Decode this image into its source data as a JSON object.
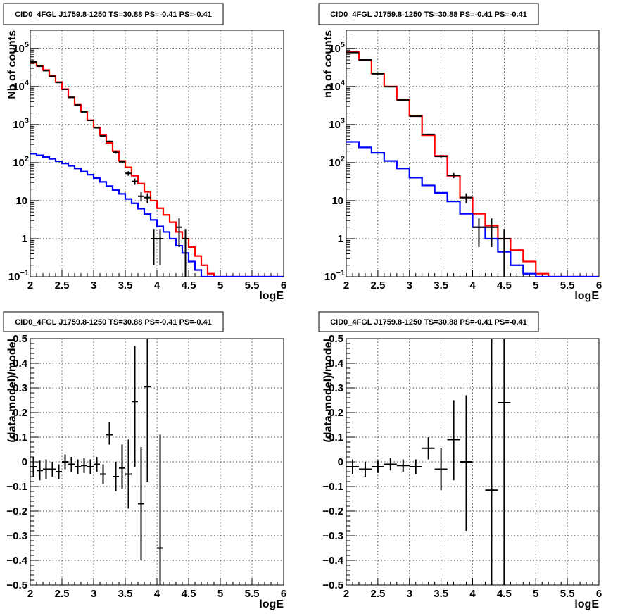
{
  "chart_data": [
    {
      "type": "step-histogram",
      "title": "CID0_4FGL J1759.8-1250 TS=30.88 PS=-0.41 PS=-0.41",
      "xlabel": "logE",
      "ylabel": "Nb of counts",
      "xlim": [
        2,
        6
      ],
      "ylim": [
        0.1,
        300000
      ],
      "yscale": "log",
      "grid": true,
      "xticks": [
        "2",
        "2.5",
        "3",
        "3.5",
        "4",
        "4.5",
        "5",
        "5.5",
        "6"
      ],
      "yticks": [
        {
          "value": 0.1,
          "base": "10",
          "exp": "−1"
        },
        {
          "value": 1,
          "base": "1",
          "exp": ""
        },
        {
          "value": 10,
          "base": "10",
          "exp": ""
        },
        {
          "value": 100,
          "base": "10",
          "exp": "2"
        },
        {
          "value": 1000,
          "base": "10",
          "exp": "3"
        },
        {
          "value": 10000,
          "base": "10",
          "exp": "4"
        },
        {
          "value": 100000,
          "base": "10",
          "exp": "5"
        }
      ],
      "bin_edges": [
        2.0,
        2.1,
        2.2,
        2.3,
        2.4,
        2.5,
        2.6,
        2.7,
        2.8,
        2.9,
        3.0,
        3.1,
        3.2,
        3.3,
        3.4,
        3.5,
        3.6,
        3.7,
        3.8,
        3.9,
        4.0,
        4.1,
        4.2,
        4.3,
        4.4,
        4.5,
        4.6,
        4.7,
        4.8,
        4.9,
        5.0,
        5.1,
        5.2,
        5.3,
        5.4,
        5.5,
        5.6,
        5.7,
        5.8,
        5.9,
        6.0
      ],
      "series": [
        {
          "color": "#ff0000",
          "values": [
            42000,
            35000,
            27000,
            19000,
            13000,
            8500,
            5200,
            3300,
            2200,
            1300,
            840,
            520,
            330,
            200,
            110,
            75,
            45,
            28,
            17,
            10,
            6.3,
            4.2,
            2.7,
            1.5,
            1.0,
            0.6,
            0.35,
            0.2,
            0.12,
            0.1,
            0.1,
            0.1,
            0.1,
            0.1,
            0.1,
            0.1,
            0.1,
            0.1,
            0.1,
            0.1
          ]
        },
        {
          "color": "#0000ff",
          "values": [
            170,
            155,
            140,
            125,
            108,
            95,
            82,
            70,
            58,
            48,
            39,
            31,
            24,
            19,
            15,
            11,
            8.5,
            6.1,
            4.4,
            3.1,
            2.1,
            1.5,
            1.0,
            0.65,
            0.42,
            0.25,
            0.15,
            0.1,
            0.1,
            0.1,
            0.1,
            0.1,
            0.1,
            0.1,
            0.1,
            0.1,
            0.1,
            0.1,
            0.1,
            0.1
          ]
        }
      ],
      "points": [
        {
          "x": 2.05,
          "y": 44000,
          "ylo": 43500,
          "yhi": 44500
        },
        {
          "x": 2.15,
          "y": 34000,
          "ylo": 33600,
          "yhi": 34400
        },
        {
          "x": 2.25,
          "y": 26000,
          "ylo": 25600,
          "yhi": 26400
        },
        {
          "x": 2.35,
          "y": 18500,
          "ylo": 18200,
          "yhi": 18800
        },
        {
          "x": 2.45,
          "y": 12700,
          "ylo": 12500,
          "yhi": 12900
        },
        {
          "x": 2.55,
          "y": 8400,
          "ylo": 8300,
          "yhi": 8500
        },
        {
          "x": 2.65,
          "y": 5150,
          "ylo": 5080,
          "yhi": 5220
        },
        {
          "x": 2.75,
          "y": 3250,
          "ylo": 3190,
          "yhi": 3310
        },
        {
          "x": 2.85,
          "y": 2150,
          "ylo": 2100,
          "yhi": 2200
        },
        {
          "x": 2.95,
          "y": 1280,
          "ylo": 1240,
          "yhi": 1320
        },
        {
          "x": 3.05,
          "y": 820,
          "ylo": 790,
          "yhi": 850
        },
        {
          "x": 3.15,
          "y": 500,
          "ylo": 478,
          "yhi": 522
        },
        {
          "x": 3.25,
          "y": 360,
          "ylo": 341,
          "yhi": 379
        },
        {
          "x": 3.35,
          "y": 185,
          "ylo": 171,
          "yhi": 199
        },
        {
          "x": 3.45,
          "y": 105,
          "ylo": 95,
          "yhi": 115
        },
        {
          "x": 3.55,
          "y": 52,
          "ylo": 45,
          "yhi": 59
        },
        {
          "x": 3.65,
          "y": 32,
          "ylo": 26,
          "yhi": 38
        },
        {
          "x": 3.75,
          "y": 13,
          "ylo": 9.5,
          "yhi": 16.5
        },
        {
          "x": 3.85,
          "y": 12,
          "ylo": 8.5,
          "yhi": 15.5
        },
        {
          "x": 3.95,
          "y": 1,
          "ylo": 0.2,
          "yhi": 1.8
        },
        {
          "x": 4.05,
          "y": 1,
          "ylo": 0.2,
          "yhi": 1.8
        },
        {
          "x": 4.35,
          "y": 2,
          "ylo": 0.6,
          "yhi": 3.4
        },
        {
          "x": 4.45,
          "y": 1,
          "ylo": 0.1,
          "yhi": 1.8
        }
      ]
    },
    {
      "type": "step-histogram",
      "title": "CID0_4FGL J1759.8-1250 TS=30.88 PS=-0.41 PS=-0.41",
      "xlabel": "logE",
      "ylabel": "nb of counts",
      "xlim": [
        2,
        6
      ],
      "ylim": [
        0.1,
        300000
      ],
      "yscale": "log",
      "grid": true,
      "xticks": [
        "2",
        "2.5",
        "3",
        "3.5",
        "4",
        "4.5",
        "5",
        "5.5",
        "6"
      ],
      "yticks": [
        {
          "value": 0.1,
          "base": "10",
          "exp": "−1"
        },
        {
          "value": 1,
          "base": "1",
          "exp": ""
        },
        {
          "value": 10,
          "base": "10",
          "exp": ""
        },
        {
          "value": 100,
          "base": "10",
          "exp": "2"
        },
        {
          "value": 1000,
          "base": "10",
          "exp": "3"
        },
        {
          "value": 10000,
          "base": "10",
          "exp": "4"
        },
        {
          "value": 100000,
          "base": "10",
          "exp": "5"
        }
      ],
      "bin_edges": [
        2.0,
        2.2,
        2.4,
        2.6,
        2.8,
        3.0,
        3.2,
        3.4,
        3.6,
        3.8,
        4.0,
        4.2,
        4.4,
        4.6,
        4.8,
        5.0,
        5.2,
        5.4,
        5.6,
        5.8,
        6.0
      ],
      "series": [
        {
          "color": "#ff0000",
          "values": [
            80000,
            50000,
            22000,
            10000,
            4500,
            1700,
            520,
            150,
            45,
            12,
            4.5,
            2.2,
            1.0,
            0.5,
            0.25,
            0.12,
            0.1,
            0.1,
            0.1,
            0.1
          ]
        },
        {
          "color": "#0000ff",
          "values": [
            350,
            250,
            180,
            110,
            70,
            40,
            25,
            16,
            9.5,
            4.5,
            2.0,
            1.0,
            0.45,
            0.2,
            0.12,
            0.1,
            0.1,
            0.1,
            0.1,
            0.1
          ]
        }
      ],
      "points": [
        {
          "x": 2.1,
          "y": 78000,
          "ylo": 77500,
          "yhi": 78500
        },
        {
          "x": 2.3,
          "y": 50000,
          "ylo": 49600,
          "yhi": 50400
        },
        {
          "x": 2.5,
          "y": 21500,
          "ylo": 21300,
          "yhi": 21700
        },
        {
          "x": 2.7,
          "y": 9800,
          "ylo": 9700,
          "yhi": 9900
        },
        {
          "x": 2.9,
          "y": 4400,
          "ylo": 4330,
          "yhi": 4470
        },
        {
          "x": 3.1,
          "y": 1650,
          "ylo": 1610,
          "yhi": 1690
        },
        {
          "x": 3.3,
          "y": 550,
          "ylo": 527,
          "yhi": 573
        },
        {
          "x": 3.5,
          "y": 145,
          "ylo": 133,
          "yhi": 157
        },
        {
          "x": 3.7,
          "y": 46,
          "ylo": 39,
          "yhi": 53
        },
        {
          "x": 3.9,
          "y": 12,
          "ylo": 8.5,
          "yhi": 15.5
        },
        {
          "x": 4.1,
          "y": 2,
          "ylo": 0.6,
          "yhi": 3.4
        },
        {
          "x": 4.3,
          "y": 2,
          "ylo": 0.6,
          "yhi": 3.4
        },
        {
          "x": 4.5,
          "y": 1,
          "ylo": 0.1,
          "yhi": 1.8
        }
      ]
    },
    {
      "type": "scatter",
      "title": "CID0_4FGL J1759.8-1250 TS=30.88 PS=-0.41 PS=-0.41",
      "xlabel": "logE",
      "ylabel": "(data-model)/model",
      "xlim": [
        2,
        6
      ],
      "ylim": [
        -0.5,
        0.5
      ],
      "yscale": "linear",
      "grid": true,
      "xticks": [
        "2",
        "2.5",
        "3",
        "3.5",
        "4",
        "4.5",
        "5",
        "5.5",
        "6"
      ],
      "yticks": [
        "−0.5",
        "−0.4",
        "−0.3",
        "−0.2",
        "−0.1",
        "0",
        "0.1",
        "0.2",
        "0.3",
        "0.4",
        "0.5"
      ],
      "xerr": 0.05,
      "points": [
        {
          "x": 2.05,
          "y": -0.02,
          "ylo": -0.06,
          "yhi": 0.02
        },
        {
          "x": 2.15,
          "y": -0.035,
          "ylo": -0.075,
          "yhi": 0.005
        },
        {
          "x": 2.25,
          "y": -0.03,
          "ylo": -0.07,
          "yhi": 0.01
        },
        {
          "x": 2.35,
          "y": -0.03,
          "ylo": -0.06,
          "yhi": 0.0
        },
        {
          "x": 2.45,
          "y": -0.04,
          "ylo": -0.07,
          "yhi": -0.01
        },
        {
          "x": 2.55,
          "y": 0.0,
          "ylo": -0.03,
          "yhi": 0.03
        },
        {
          "x": 2.65,
          "y": -0.01,
          "ylo": -0.04,
          "yhi": 0.02
        },
        {
          "x": 2.75,
          "y": -0.02,
          "ylo": -0.05,
          "yhi": 0.01
        },
        {
          "x": 2.85,
          "y": -0.015,
          "ylo": -0.045,
          "yhi": 0.015
        },
        {
          "x": 2.95,
          "y": -0.02,
          "ylo": -0.05,
          "yhi": 0.01
        },
        {
          "x": 3.05,
          "y": -0.01,
          "ylo": -0.04,
          "yhi": 0.02
        },
        {
          "x": 3.15,
          "y": -0.05,
          "ylo": -0.09,
          "yhi": -0.01
        },
        {
          "x": 3.25,
          "y": 0.11,
          "ylo": 0.07,
          "yhi": 0.16
        },
        {
          "x": 3.35,
          "y": -0.06,
          "ylo": -0.12,
          "yhi": 0.0
        },
        {
          "x": 3.45,
          "y": -0.025,
          "ylo": -0.11,
          "yhi": 0.07
        },
        {
          "x": 3.55,
          "y": -0.05,
          "ylo": -0.19,
          "yhi": 0.09
        },
        {
          "x": 3.65,
          "y": 0.245,
          "ylo": -0.02,
          "yhi": 0.47
        },
        {
          "x": 3.75,
          "y": -0.17,
          "ylo": -0.4,
          "yhi": 0.06
        },
        {
          "x": 3.85,
          "y": 0.305,
          "ylo": -0.08,
          "yhi": 0.5
        },
        {
          "x": 4.05,
          "y": -0.35,
          "ylo": -0.5,
          "yhi": 0.11
        }
      ]
    },
    {
      "type": "scatter",
      "title": "CID0_4FGL J1759.8-1250 TS=30.88 PS=-0.41 PS=-0.41",
      "xlabel": "logE",
      "ylabel": "(data-model)/model",
      "xlim": [
        2,
        6
      ],
      "ylim": [
        -0.5,
        0.5
      ],
      "yscale": "linear",
      "grid": true,
      "xticks": [
        "2",
        "2.5",
        "3",
        "3.5",
        "4",
        "4.5",
        "5",
        "5.5",
        "6"
      ],
      "yticks": [
        "−0.5",
        "−0.4",
        "−0.3",
        "−0.2",
        "−0.1",
        "0",
        "0.1",
        "0.2",
        "0.3",
        "0.4",
        "0.5"
      ],
      "xerr": 0.1,
      "points": [
        {
          "x": 2.1,
          "y": -0.02,
          "ylo": -0.05,
          "yhi": 0.01
        },
        {
          "x": 2.3,
          "y": -0.03,
          "ylo": -0.06,
          "yhi": 0.0
        },
        {
          "x": 2.5,
          "y": -0.02,
          "ylo": -0.045,
          "yhi": 0.005
        },
        {
          "x": 2.7,
          "y": -0.01,
          "ylo": -0.035,
          "yhi": 0.015
        },
        {
          "x": 2.9,
          "y": -0.015,
          "ylo": -0.04,
          "yhi": 0.01
        },
        {
          "x": 3.1,
          "y": -0.02,
          "ylo": -0.05,
          "yhi": 0.01
        },
        {
          "x": 3.3,
          "y": 0.055,
          "ylo": 0.01,
          "yhi": 0.1
        },
        {
          "x": 3.5,
          "y": -0.03,
          "ylo": -0.115,
          "yhi": 0.055
        },
        {
          "x": 3.7,
          "y": 0.09,
          "ylo": -0.075,
          "yhi": 0.25
        },
        {
          "x": 3.9,
          "y": 0.0,
          "ylo": -0.28,
          "yhi": 0.27
        },
        {
          "x": 4.3,
          "y": -0.115,
          "ylo": -0.5,
          "yhi": 0.5
        },
        {
          "x": 4.5,
          "y": 0.24,
          "ylo": -0.5,
          "yhi": 0.5
        }
      ]
    }
  ]
}
